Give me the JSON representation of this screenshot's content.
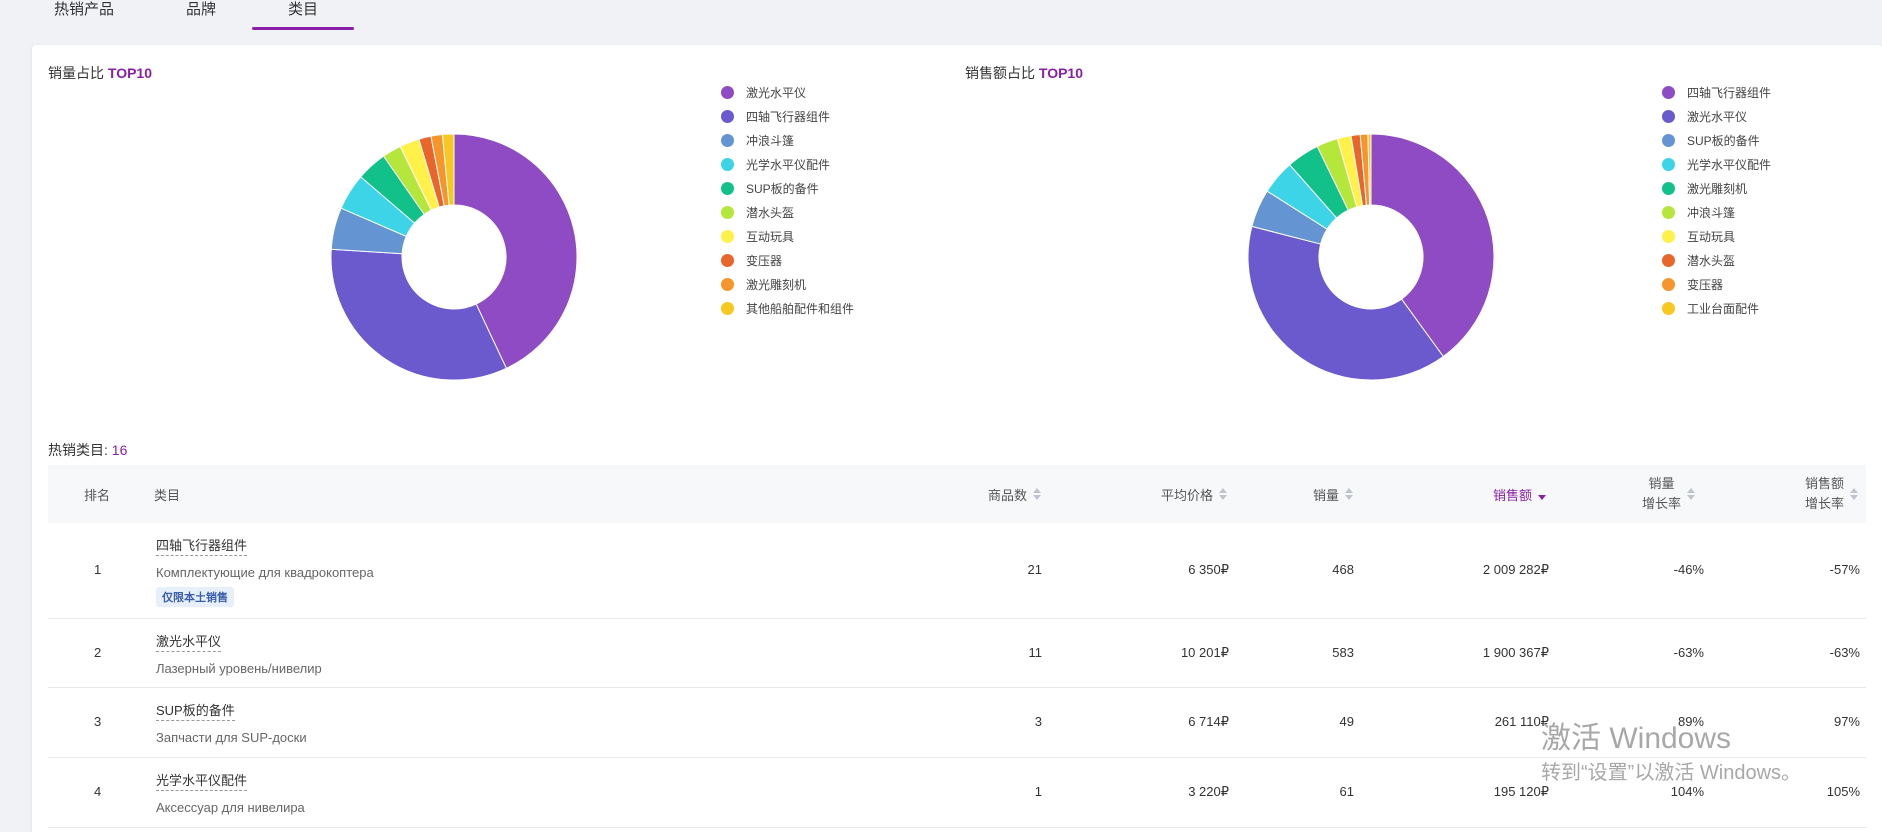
{
  "tabs": [
    {
      "label": "热销产品"
    },
    {
      "label": "品牌"
    },
    {
      "label": "类目"
    }
  ],
  "colors": {
    "accent": "#8a1ea8",
    "palette": [
      "#8e4bc4",
      "#6a5acd",
      "#6495d2",
      "#3cd4e6",
      "#12c18a",
      "#b4e63c",
      "#fff04a",
      "#e8652c",
      "#f5952c",
      "#f7c81e"
    ]
  },
  "volume_chart": {
    "title_prefix": "销量占比 ",
    "title_highlight": "TOP10",
    "legend": [
      "激光水平仪",
      "四轴飞行器组件",
      "冲浪斗篷",
      "光学水平仪配件",
      "SUP板的备件",
      "潜水头盔",
      "互动玩具",
      "变压器",
      "激光雕刻机",
      "其他船舶配件和组件"
    ]
  },
  "sales_chart": {
    "title_prefix": "销售额占比 ",
    "title_highlight": "TOP10",
    "legend": [
      "四轴飞行器组件",
      "激光水平仪",
      "SUP板的备件",
      "光学水平仪配件",
      "激光雕刻机",
      "冲浪斗篷",
      "互动玩具",
      "潜水头盔",
      "变压器",
      "工业台面配件"
    ]
  },
  "chart_data": [
    {
      "type": "pie",
      "title": "销量占比 TOP10",
      "categories": [
        "激光水平仪",
        "四轴飞行器组件",
        "冲浪斗篷",
        "光学水平仪配件",
        "SUP板的备件",
        "潜水头盔",
        "互动玩具",
        "变压器",
        "激光雕刻机",
        "其他船舶配件和组件"
      ],
      "values": [
        43,
        33,
        5.5,
        4.8,
        4,
        2.5,
        2.6,
        1.6,
        1.5,
        1.5
      ]
    },
    {
      "type": "pie",
      "title": "销售额占比 TOP10",
      "categories": [
        "四轴飞行器组件",
        "激光水平仪",
        "SUP板的备件",
        "光学水平仪配件",
        "激光雕刻机",
        "冲浪斗篷",
        "互动玩具",
        "潜水头盔",
        "变压器",
        "工业台面配件"
      ],
      "values": [
        40,
        39,
        5,
        4.5,
        4.3,
        2.8,
        1.8,
        1.2,
        1,
        0.4
      ]
    }
  ],
  "hot_categories": {
    "label": "热销类目: ",
    "count": "16"
  },
  "table": {
    "headers": {
      "rank": "排名",
      "category": "类目",
      "products": "商品数",
      "avg_price": "平均价格",
      "volume": "销量",
      "sales": "销售额",
      "volume_growth_1": "销量",
      "volume_growth_2": "增长率",
      "sales_growth_1": "销售额",
      "sales_growth_2": "增长率"
    },
    "rows": [
      {
        "rank": "1",
        "name": "四轴飞行器组件",
        "sub": "Комплектующие для квадрокоптера",
        "badge": "仅限本土销售",
        "products": "21",
        "avg_price": "6 350₽",
        "volume": "468",
        "sales": "2 009 282₽",
        "volume_growth": "-46%",
        "sales_growth": "-57%"
      },
      {
        "rank": "2",
        "name": "激光水平仪",
        "sub": "Лазерный уровень/нивелир",
        "products": "11",
        "avg_price": "10 201₽",
        "volume": "583",
        "sales": "1 900 367₽",
        "volume_growth": "-63%",
        "sales_growth": "-63%"
      },
      {
        "rank": "3",
        "name": "SUP板的备件",
        "sub": "Запчасти для SUP-доски",
        "products": "3",
        "avg_price": "6 714₽",
        "volume": "49",
        "sales": "261 110₽",
        "volume_growth": "89%",
        "sales_growth": "97%"
      },
      {
        "rank": "4",
        "name": "光学水平仪配件",
        "sub": "Аксессуар для нивелира",
        "products": "1",
        "avg_price": "3 220₽",
        "volume": "61",
        "sales": "195 120₽",
        "volume_growth": "104%",
        "sales_growth": "105%"
      }
    ]
  },
  "watermark": {
    "line1": "激活 Windows",
    "line2": "转到“设置”以激活 Windows。"
  }
}
